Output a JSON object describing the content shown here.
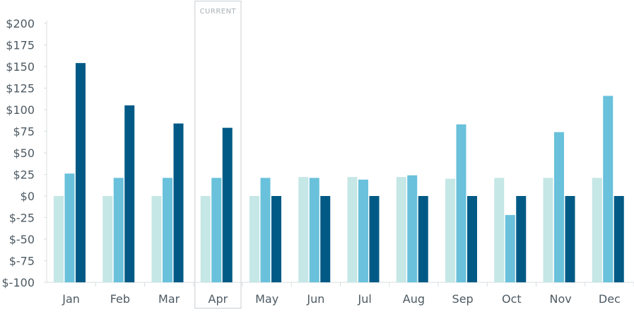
{
  "chart_data": {
    "type": "bar",
    "categories": [
      "Jan",
      "Feb",
      "Mar",
      "Apr",
      "May",
      "Jun",
      "Jul",
      "Aug",
      "Sep",
      "Oct",
      "Nov",
      "Dec"
    ],
    "series": [
      {
        "values": [
          0,
          0,
          0,
          0,
          0,
          22,
          22,
          22,
          20,
          21,
          21,
          21
        ],
        "color": "#c5e7e6"
      },
      {
        "values": [
          26,
          21,
          21,
          21,
          21,
          21,
          19,
          24,
          83,
          -22,
          74,
          116
        ],
        "color": "#69c1db"
      },
      {
        "values": [
          154,
          105,
          84,
          79,
          0,
          0,
          0,
          0,
          0,
          0,
          0,
          0
        ],
        "color": "#005a85"
      }
    ],
    "ylim": [
      -100,
      200
    ],
    "yticks": [
      {
        "value": 200,
        "label": "$200"
      },
      {
        "value": 175,
        "label": "$175"
      },
      {
        "value": 150,
        "label": "$150"
      },
      {
        "value": 125,
        "label": "$125"
      },
      {
        "value": 100,
        "label": "$100"
      },
      {
        "value": 75,
        "label": "$75"
      },
      {
        "value": 50,
        "label": "$50"
      },
      {
        "value": 25,
        "label": "$25"
      },
      {
        "value": 0,
        "label": "$0"
      },
      {
        "value": -25,
        "label": "$-25"
      },
      {
        "value": -50,
        "label": "$-50"
      },
      {
        "value": -75,
        "label": "$-75"
      },
      {
        "value": -100,
        "label": "$-100"
      }
    ],
    "highlight": {
      "category": "Apr",
      "label": "CURRENT"
    },
    "grid": false,
    "legend": "none",
    "axis_color": "#d9dee1"
  }
}
